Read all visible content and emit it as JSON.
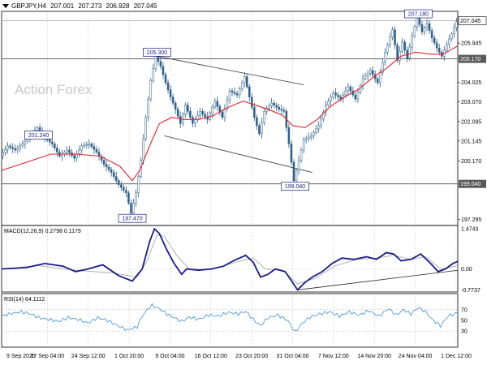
{
  "header": {
    "symbol": "GBPJPY,H4",
    "open": "207.001",
    "high": "207.273",
    "low": "206.928",
    "close": "207.045"
  },
  "watermark": "Action Forex",
  "colors": {
    "candle": "#2c5f8a",
    "ma": "#e8202a",
    "macd_main": "#1a1a8c",
    "macd_signal": "#b0b0b0",
    "rsi": "#3a8fd8",
    "hline": "#4d4d4d",
    "grid": "#c0c0c0",
    "label_border": "#1a1a8c"
  },
  "chart_data": [
    {
      "type": "candlestick",
      "panel": "price",
      "ylim": [
        197.0,
        207.5
      ],
      "y_ticks": [
        "207.045",
        "205.945",
        "205.170",
        "204.025",
        "203.070",
        "202.095",
        "201.145",
        "200.170",
        "199.040",
        "197.295"
      ],
      "x_labels": [
        "9 Sep 2025",
        "17 Sep 04:00",
        "24 Sep 12:00",
        "1 Oct 20:00",
        "9 Oct 04:00",
        "16 Oct 12:00",
        "23 Oct 20:00",
        "31 Oct 04:00",
        "7 Nov 12:00",
        "14 Nov 20:00",
        "24 Nov 04:00",
        "1 Dec 12:00"
      ],
      "path_points": [
        [
          0,
          200.4
        ],
        [
          6,
          200.9
        ],
        [
          12,
          200.7
        ],
        [
          18,
          201.0
        ],
        [
          24,
          201.4
        ],
        [
          30,
          201.8
        ],
        [
          36,
          201.3
        ],
        [
          42,
          201.0
        ],
        [
          48,
          200.4
        ],
        [
          54,
          200.7
        ],
        [
          60,
          200.3
        ],
        [
          66,
          200.9
        ],
        [
          72,
          201.0
        ],
        [
          78,
          200.6
        ],
        [
          84,
          200.0
        ],
        [
          90,
          199.6
        ],
        [
          96,
          199.0
        ],
        [
          102,
          198.6
        ],
        [
          106,
          197.6
        ],
        [
          110,
          198.6
        ],
        [
          114,
          200.2
        ],
        [
          118,
          202.3
        ],
        [
          122,
          204.1
        ],
        [
          126,
          205.3
        ],
        [
          130,
          204.8
        ],
        [
          134,
          204.0
        ],
        [
          138,
          203.3
        ],
        [
          142,
          202.7
        ],
        [
          146,
          202.0
        ],
        [
          150,
          202.9
        ],
        [
          156,
          202.0
        ],
        [
          162,
          202.6
        ],
        [
          168,
          202.2
        ],
        [
          174,
          203.1
        ],
        [
          180,
          202.3
        ],
        [
          186,
          203.6
        ],
        [
          192,
          203.4
        ],
        [
          198,
          204.3
        ],
        [
          202,
          203.3
        ],
        [
          206,
          202.3
        ],
        [
          210,
          201.5
        ],
        [
          214,
          202.6
        ],
        [
          220,
          203.0
        ],
        [
          226,
          202.7
        ],
        [
          230,
          202.6
        ],
        [
          234,
          201.0
        ],
        [
          238,
          199.2
        ],
        [
          242,
          200.2
        ],
        [
          246,
          201.2
        ],
        [
          252,
          201.4
        ],
        [
          258,
          201.9
        ],
        [
          264,
          202.9
        ],
        [
          270,
          203.5
        ],
        [
          276,
          203.2
        ],
        [
          282,
          203.8
        ],
        [
          288,
          203.2
        ],
        [
          294,
          204.2
        ],
        [
          300,
          204.6
        ],
        [
          306,
          204.0
        ],
        [
          312,
          205.5
        ],
        [
          318,
          206.6
        ],
        [
          322,
          205.1
        ],
        [
          326,
          206.0
        ],
        [
          330,
          205.2
        ],
        [
          334,
          206.3
        ],
        [
          338,
          207.2
        ],
        [
          342,
          206.5
        ],
        [
          346,
          206.9
        ],
        [
          350,
          206.2
        ],
        [
          354,
          205.7
        ],
        [
          358,
          205.3
        ],
        [
          362,
          205.9
        ],
        [
          366,
          206.4
        ],
        [
          370,
          207.0
        ]
      ],
      "ma_points": [
        [
          0,
          199.7
        ],
        [
          20,
          200.1
        ],
        [
          40,
          200.5
        ],
        [
          60,
          200.5
        ],
        [
          80,
          200.4
        ],
        [
          96,
          199.9
        ],
        [
          106,
          199.2
        ],
        [
          112,
          199.7
        ],
        [
          120,
          200.9
        ],
        [
          128,
          202.0
        ],
        [
          138,
          202.3
        ],
        [
          148,
          202.2
        ],
        [
          160,
          202.2
        ],
        [
          172,
          202.4
        ],
        [
          184,
          202.8
        ],
        [
          196,
          203.1
        ],
        [
          206,
          202.9
        ],
        [
          216,
          202.7
        ],
        [
          228,
          202.4
        ],
        [
          236,
          201.9
        ],
        [
          246,
          201.8
        ],
        [
          256,
          202.2
        ],
        [
          266,
          202.8
        ],
        [
          278,
          203.3
        ],
        [
          290,
          203.7
        ],
        [
          302,
          204.3
        ],
        [
          312,
          204.7
        ],
        [
          324,
          205.3
        ],
        [
          336,
          205.5
        ],
        [
          348,
          205.4
        ],
        [
          358,
          205.4
        ],
        [
          370,
          205.8
        ]
      ],
      "labels": [
        {
          "value": "205.300",
          "x": 126
        },
        {
          "value": "201.240",
          "x": 30
        },
        {
          "value": "197.470",
          "x": 106
        },
        {
          "value": "199.040",
          "x": 238
        },
        {
          "value": "207.180",
          "x": 338
        }
      ],
      "horizontal_lines": [
        {
          "y": 205.17,
          "label": "205.170"
        },
        {
          "y": 199.04,
          "label": "199.040"
        }
      ],
      "current_price": {
        "y": 207.045,
        "label": "207.045"
      },
      "channel": [
        [
          [
            126,
            205.3
          ],
          [
            245,
            203.9
          ]
        ],
        [
          [
            132,
            201.4
          ],
          [
            252,
            199.6
          ]
        ]
      ]
    },
    {
      "type": "line",
      "panel": "macd",
      "title": "MACD(12,26,9) 0.2798 0.1179",
      "ylim": [
        -0.85,
        1.6
      ],
      "y_ticks": [
        "1.4743",
        "0.00",
        "-0.7737"
      ],
      "main_points": [
        [
          0,
          0.0
        ],
        [
          20,
          0.05
        ],
        [
          35,
          0.2
        ],
        [
          50,
          0.1
        ],
        [
          60,
          -0.1
        ],
        [
          70,
          0.0
        ],
        [
          82,
          0.15
        ],
        [
          95,
          -0.25
        ],
        [
          106,
          -0.45
        ],
        [
          114,
          0.0
        ],
        [
          120,
          1.0
        ],
        [
          124,
          1.4743
        ],
        [
          128,
          1.3
        ],
        [
          134,
          0.7
        ],
        [
          140,
          0.2
        ],
        [
          146,
          -0.2
        ],
        [
          150,
          0.0
        ],
        [
          160,
          -0.05
        ],
        [
          170,
          0.0
        ],
        [
          180,
          0.1
        ],
        [
          188,
          0.3
        ],
        [
          198,
          0.5
        ],
        [
          204,
          0.25
        ],
        [
          210,
          -0.3
        ],
        [
          216,
          -0.2
        ],
        [
          222,
          0.0
        ],
        [
          230,
          -0.1
        ],
        [
          236,
          -0.5
        ],
        [
          240,
          -0.7737
        ],
        [
          246,
          -0.5
        ],
        [
          252,
          -0.3
        ],
        [
          260,
          -0.1
        ],
        [
          268,
          0.2
        ],
        [
          276,
          0.4
        ],
        [
          286,
          0.35
        ],
        [
          296,
          0.45
        ],
        [
          304,
          0.35
        ],
        [
          312,
          0.6
        ],
        [
          318,
          0.55
        ],
        [
          324,
          0.3
        ],
        [
          332,
          0.35
        ],
        [
          340,
          0.55
        ],
        [
          348,
          0.2
        ],
        [
          354,
          -0.1
        ],
        [
          360,
          0.0
        ],
        [
          366,
          0.2
        ],
        [
          370,
          0.2798
        ]
      ],
      "signal_points": [
        [
          0,
          0.0
        ],
        [
          30,
          0.12
        ],
        [
          60,
          -0.05
        ],
        [
          90,
          -0.15
        ],
        [
          110,
          -0.3
        ],
        [
          118,
          0.3
        ],
        [
          126,
          1.25
        ],
        [
          132,
          1.2
        ],
        [
          142,
          0.5
        ],
        [
          152,
          0.0
        ],
        [
          170,
          -0.02
        ],
        [
          190,
          0.25
        ],
        [
          204,
          0.4
        ],
        [
          214,
          0.0
        ],
        [
          228,
          -0.05
        ],
        [
          240,
          -0.55
        ],
        [
          254,
          -0.35
        ],
        [
          270,
          0.1
        ],
        [
          288,
          0.35
        ],
        [
          304,
          0.4
        ],
        [
          318,
          0.5
        ],
        [
          332,
          0.35
        ],
        [
          344,
          0.45
        ],
        [
          356,
          0.0
        ],
        [
          370,
          0.1179
        ]
      ],
      "trend_line": [
        [
          240,
          -0.7737
        ],
        [
          370,
          -0.05
        ]
      ]
    },
    {
      "type": "line",
      "panel": "rsi",
      "title": "RSI(14) 64.1112",
      "ylim": [
        0,
        100
      ],
      "y_ticks": [
        "70",
        "50",
        "30"
      ],
      "levels": [
        70,
        30
      ],
      "points": [
        [
          0,
          58
        ],
        [
          8,
          63
        ],
        [
          16,
          66
        ],
        [
          24,
          62
        ],
        [
          30,
          55
        ],
        [
          38,
          52
        ],
        [
          46,
          48
        ],
        [
          54,
          55
        ],
        [
          62,
          52
        ],
        [
          70,
          45
        ],
        [
          78,
          55
        ],
        [
          86,
          50
        ],
        [
          94,
          40
        ],
        [
          102,
          32
        ],
        [
          110,
          38
        ],
        [
          114,
          58
        ],
        [
          118,
          70
        ],
        [
          122,
          78
        ],
        [
          128,
          72
        ],
        [
          134,
          62
        ],
        [
          140,
          55
        ],
        [
          146,
          48
        ],
        [
          152,
          56
        ],
        [
          160,
          52
        ],
        [
          168,
          60
        ],
        [
          176,
          58
        ],
        [
          184,
          65
        ],
        [
          192,
          62
        ],
        [
          198,
          67
        ],
        [
          204,
          52
        ],
        [
          210,
          40
        ],
        [
          216,
          55
        ],
        [
          224,
          60
        ],
        [
          232,
          50
        ],
        [
          238,
          28
        ],
        [
          244,
          45
        ],
        [
          250,
          56
        ],
        [
          258,
          62
        ],
        [
          266,
          66
        ],
        [
          274,
          58
        ],
        [
          282,
          66
        ],
        [
          290,
          60
        ],
        [
          298,
          68
        ],
        [
          306,
          58
        ],
        [
          314,
          72
        ],
        [
          320,
          60
        ],
        [
          326,
          70
        ],
        [
          332,
          62
        ],
        [
          338,
          74
        ],
        [
          344,
          66
        ],
        [
          350,
          50
        ],
        [
          356,
          40
        ],
        [
          362,
          58
        ],
        [
          370,
          64.1112
        ]
      ]
    }
  ]
}
